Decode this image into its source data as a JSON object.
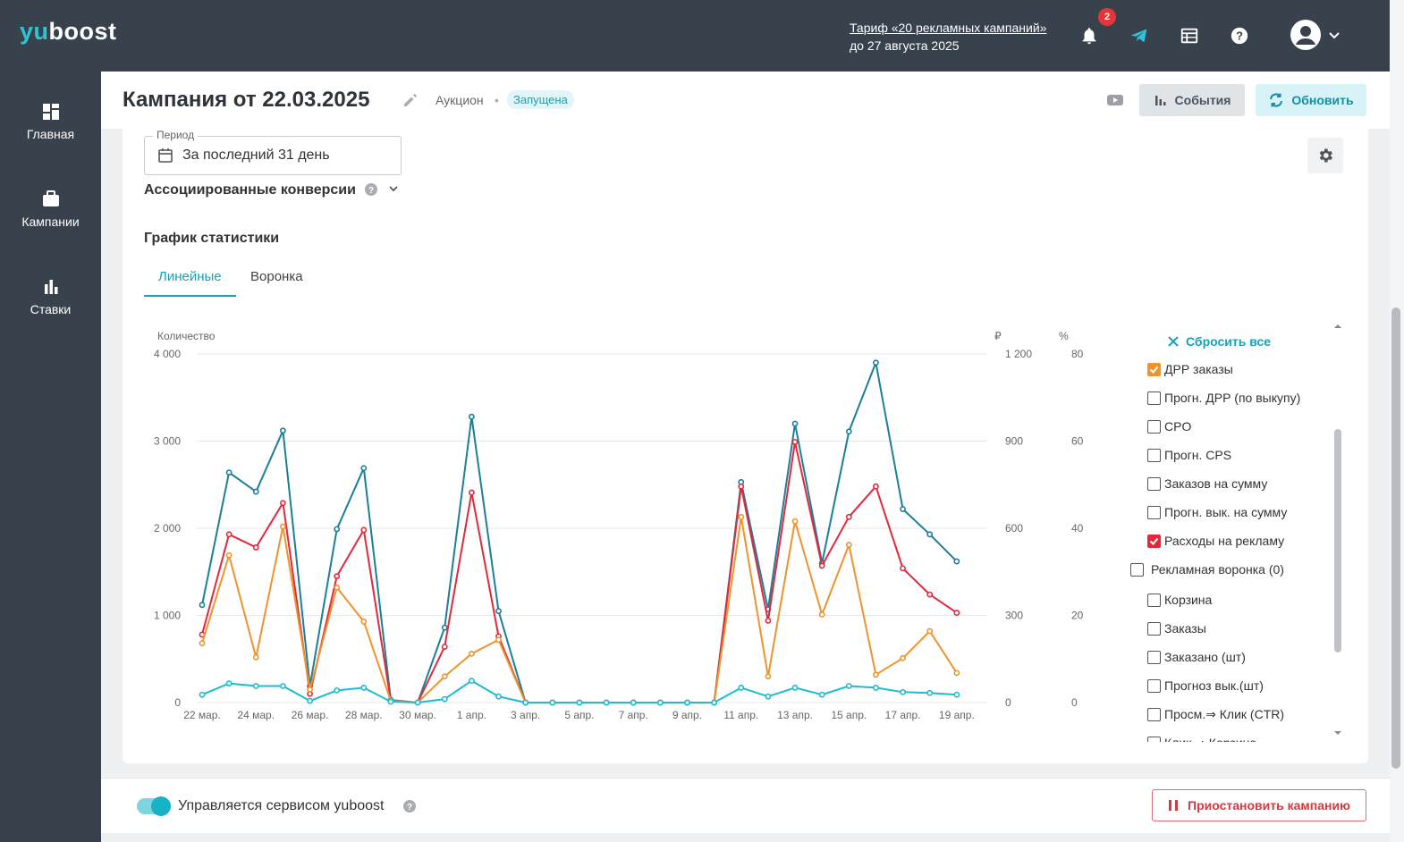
{
  "app": {
    "logo_prefix": "yu",
    "logo_suffix": "boost"
  },
  "topbar": {
    "tariff_link": "Тариф «20 рекламных кампаний»",
    "tariff_until": "до 27 августа 2025",
    "notification_count": "2"
  },
  "sidebar": {
    "items": [
      {
        "label": "Главная",
        "icon": "dashboard-icon"
      },
      {
        "label": "Кампании",
        "icon": "briefcase-icon"
      },
      {
        "label": "Ставки",
        "icon": "bar-chart-icon"
      }
    ]
  },
  "header": {
    "title": "Кампания от 22.03.2025",
    "type": "Аукцион",
    "status": "Запущена",
    "events_label": "События",
    "refresh_label": "Обновить"
  },
  "filters": {
    "period_legend": "Период",
    "period_value": "За последний 31 день",
    "assoc_label": "Ассоциированные конверсии"
  },
  "graph": {
    "title": "График статистики",
    "tabs": [
      {
        "label": "Линейные",
        "active": true
      },
      {
        "label": "Воронка",
        "active": false
      }
    ]
  },
  "legend": {
    "reset_label": "Сбросить все",
    "options": [
      {
        "label": "ДРР заказы",
        "checked": true,
        "color": "#f0932b",
        "indent": true
      },
      {
        "label": "Прогн. ДРР (по выкупу)",
        "checked": false,
        "indent": true
      },
      {
        "label": "CPO",
        "checked": false,
        "indent": true
      },
      {
        "label": "Прогн. CPS",
        "checked": false,
        "indent": true
      },
      {
        "label": "Заказов на сумму",
        "checked": false,
        "indent": true
      },
      {
        "label": "Прогн. вык. на сумму",
        "checked": false,
        "indent": true
      },
      {
        "label": "Расходы на рекламу",
        "checked": true,
        "color": "#e2283c",
        "indent": true
      },
      {
        "label": "Рекламная воронка (0)",
        "checked": false,
        "indent": false
      },
      {
        "label": "Корзина",
        "checked": false,
        "indent": true
      },
      {
        "label": "Заказы",
        "checked": false,
        "indent": true
      },
      {
        "label": "Заказано (шт)",
        "checked": false,
        "indent": true
      },
      {
        "label": "Прогноз вык.(шт)",
        "checked": false,
        "indent": true
      },
      {
        "label": "Просм.⇒ Клик (CTR)",
        "checked": false,
        "indent": true
      },
      {
        "label": "Клик ⇒ Корзина",
        "checked": false,
        "indent": true
      }
    ]
  },
  "chart_data": {
    "type": "line",
    "axis_left_label": "Количество",
    "axis_mid_label": "₽",
    "axis_right_label": "%",
    "left_ticks": [
      "0",
      "1 000",
      "2 000",
      "3 000",
      "4 000"
    ],
    "mid_ticks": [
      "0",
      "300",
      "600",
      "900",
      "1 200"
    ],
    "right_ticks": [
      "0",
      "20",
      "40",
      "60",
      "80"
    ],
    "ylim_left": [
      0,
      4000
    ],
    "ylim_mid": [
      0,
      1200
    ],
    "ylim_right": [
      0,
      80
    ],
    "x_tick_labels": [
      "22 мар.",
      "24 мар.",
      "26 мар.",
      "28 мар.",
      "30 мар.",
      "1 апр.",
      "3 апр.",
      "5 апр.",
      "7 апр.",
      "9 апр.",
      "11 апр.",
      "13 апр.",
      "15 апр.",
      "17 апр.",
      "19 апр."
    ],
    "x": [
      "22 мар.",
      "23 мар.",
      "24 мар.",
      "25 мар.",
      "26 мар.",
      "27 мар.",
      "28 мар.",
      "29 мар.",
      "30 мар.",
      "31 мар.",
      "1 апр.",
      "2 апр.",
      "3 апр.",
      "4 апр.",
      "5 апр.",
      "6 апр.",
      "7 апр.",
      "8 апр.",
      "9 апр.",
      "10 апр.",
      "11 апр.",
      "12 апр.",
      "13 апр.",
      "14 апр.",
      "15 апр.",
      "16 апр.",
      "17 апр.",
      "18 апр.",
      "19 апр.",
      "20 апр."
    ],
    "series": [
      {
        "color": "#1a7f98",
        "values": [
          1120,
          2640,
          2420,
          3120,
          190,
          1990,
          2690,
          30,
          0,
          860,
          3280,
          1050,
          0,
          0,
          0,
          0,
          0,
          0,
          0,
          0,
          2530,
          1070,
          3200,
          1600,
          3110,
          3900,
          2220,
          1930,
          1620,
          null
        ]
      },
      {
        "color": "#e2283c",
        "values": [
          780,
          1930,
          1780,
          2290,
          100,
          1450,
          1980,
          20,
          0,
          640,
          2410,
          760,
          0,
          0,
          0,
          0,
          0,
          0,
          0,
          0,
          2480,
          940,
          2990,
          1570,
          2130,
          2480,
          1540,
          1240,
          1030,
          null
        ]
      },
      {
        "color": "#f0932b",
        "values": [
          680,
          1690,
          520,
          2020,
          150,
          1320,
          930,
          20,
          0,
          300,
          560,
          720,
          0,
          0,
          0,
          0,
          0,
          0,
          0,
          0,
          2130,
          300,
          2080,
          1010,
          1810,
          320,
          510,
          820,
          340,
          null
        ]
      },
      {
        "color": "#1cbcd2",
        "values": [
          90,
          220,
          190,
          190,
          20,
          140,
          170,
          10,
          0,
          40,
          250,
          70,
          0,
          0,
          0,
          0,
          0,
          0,
          0,
          0,
          170,
          70,
          170,
          90,
          190,
          170,
          120,
          110,
          90,
          null
        ]
      }
    ]
  },
  "footer": {
    "managed_label": "Управляется сервисом yuboost",
    "pause_label": "Приостановить кампанию"
  }
}
